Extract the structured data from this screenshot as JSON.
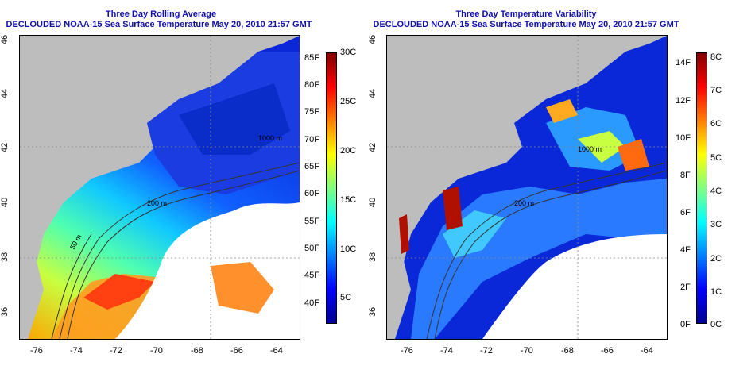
{
  "left_panel": {
    "title": "Three Day Rolling Average",
    "subtitle": "DECLOUDED NOAA-15 Sea Surface Temperature May 20, 2010 21:57 GMT",
    "contour_labels": [
      "200 m",
      "1000 m",
      "50 m"
    ],
    "colorbar_f_labels": [
      "85F",
      "80F",
      "75F",
      "70F",
      "65F",
      "60F",
      "55F",
      "50F",
      "45F",
      "40F"
    ],
    "colorbar_c_labels": [
      "30C",
      "25C",
      "20C",
      "15C",
      "10C",
      "5C"
    ],
    "colors": [
      "#00008f",
      "#0000ff",
      "#0080ff",
      "#00ffff",
      "#80ff80",
      "#ffff00",
      "#ff8000",
      "#ff0000",
      "#800000"
    ]
  },
  "right_panel": {
    "title": "Three Day Temperature Variability",
    "subtitle": "DECLOUDED NOAA-15 Sea Surface Temperature May 20, 2010 21:57 GMT",
    "contour_labels": [
      "200 m",
      "1000 m"
    ],
    "colorbar_f_labels": [
      "14F",
      "12F",
      "10F",
      "8F",
      "6F",
      "4F",
      "2F",
      "0F"
    ],
    "colorbar_c_labels": [
      "8C",
      "7C",
      "6C",
      "5C",
      "4C",
      "3C",
      "2C",
      "1C",
      "0C"
    ]
  },
  "axes": {
    "x_ticks": [
      "-76",
      "-74",
      "-72",
      "-70",
      "-68",
      "-66",
      "-64"
    ],
    "y_ticks": [
      "46",
      "44",
      "42",
      "40",
      "38",
      "36"
    ]
  },
  "colors": {
    "title": "#1111aa",
    "land": "#bdbdbd",
    "cloud_mask": "#ffffff"
  }
}
